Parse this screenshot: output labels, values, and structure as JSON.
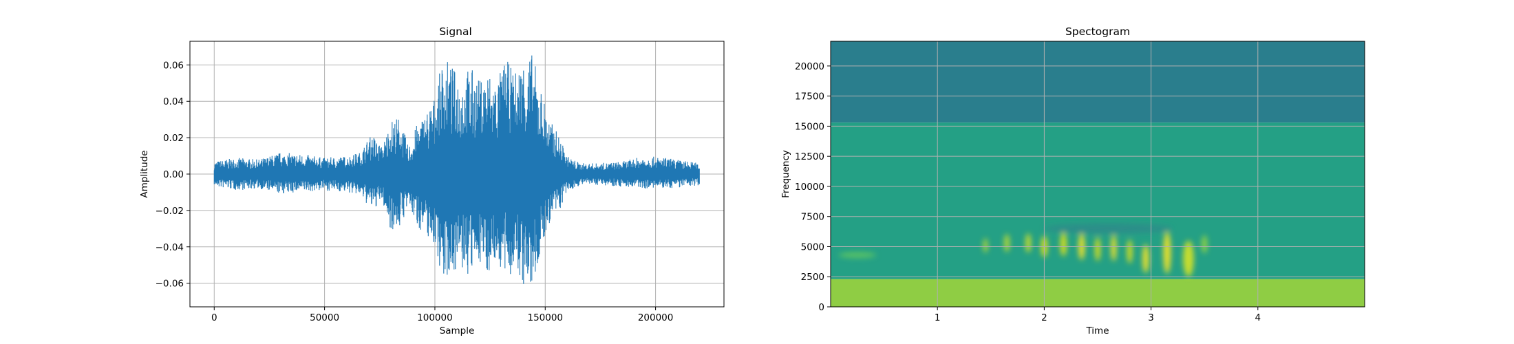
{
  "chart_data": [
    {
      "type": "line",
      "title": "Signal",
      "xlabel": "Sample",
      "ylabel": "Amplitude",
      "xlim": [
        -11000,
        231000
      ],
      "ylim": [
        -0.073,
        0.073
      ],
      "xticks": [
        0,
        50000,
        100000,
        150000,
        200000
      ],
      "xtick_labels": [
        "0",
        "50000",
        "100000",
        "150000",
        "200000"
      ],
      "yticks": [
        -0.06,
        -0.04,
        -0.02,
        0.0,
        0.02,
        0.04,
        0.06
      ],
      "ytick_labels": [
        "−0.06",
        "−0.04",
        "−0.02",
        "0.00",
        "0.02",
        "0.04",
        "0.06"
      ],
      "grid": true,
      "color": "#1f77b4",
      "series": [
        {
          "x": [
            0,
            10000,
            20000,
            30000,
            40000,
            50000,
            60000,
            66000,
            70000,
            72000,
            76000,
            80000,
            84000,
            88000,
            92000,
            96000,
            100000,
            104000,
            108000,
            112000,
            116000,
            120000,
            124000,
            128000,
            132000,
            136000,
            140000,
            144000,
            148000,
            152000,
            156000,
            160000,
            166000,
            175000,
            185000,
            195000,
            205000,
            215000,
            220000
          ],
          "max": [
            0.007,
            0.009,
            0.008,
            0.012,
            0.011,
            0.009,
            0.01,
            0.012,
            0.02,
            0.022,
            0.015,
            0.03,
            0.032,
            0.015,
            0.028,
            0.035,
            0.043,
            0.066,
            0.059,
            0.055,
            0.06,
            0.052,
            0.058,
            0.052,
            0.064,
            0.056,
            0.065,
            0.067,
            0.048,
            0.03,
            0.022,
            0.01,
            0.006,
            0.006,
            0.007,
            0.01,
            0.009,
            0.007,
            0.006
          ],
          "min": [
            -0.007,
            -0.009,
            -0.008,
            -0.011,
            -0.01,
            -0.009,
            -0.01,
            -0.012,
            -0.018,
            -0.02,
            -0.015,
            -0.031,
            -0.03,
            -0.018,
            -0.029,
            -0.034,
            -0.04,
            -0.06,
            -0.053,
            -0.055,
            -0.058,
            -0.048,
            -0.055,
            -0.048,
            -0.06,
            -0.053,
            -0.063,
            -0.066,
            -0.045,
            -0.027,
            -0.022,
            -0.01,
            -0.006,
            -0.006,
            -0.007,
            -0.008,
            -0.008,
            -0.007,
            -0.006
          ]
        }
      ]
    },
    {
      "type": "heatmap",
      "title": "Spectogram",
      "xlabel": "Time",
      "ylabel": "Frequency",
      "xlim": [
        0,
        5
      ],
      "ylim": [
        0,
        22050
      ],
      "xticks": [
        1,
        2,
        3,
        4
      ],
      "xtick_labels": [
        "1",
        "2",
        "3",
        "4"
      ],
      "yticks": [
        0,
        2500,
        5000,
        7500,
        10000,
        12500,
        15000,
        17500,
        20000
      ],
      "ytick_labels": [
        "0",
        "2500",
        "5000",
        "7500",
        "10000",
        "12500",
        "15000",
        "17500",
        "20000"
      ],
      "grid": true,
      "colormap": "viridis",
      "bands": [
        {
          "freq_min": 15300,
          "freq_max": 22050,
          "color": "#2a7e8d"
        },
        {
          "freq_min": 2300,
          "freq_max": 15300,
          "color": "#24a085"
        },
        {
          "freq_min": 0,
          "freq_max": 2300,
          "color": "#8fcd44"
        }
      ],
      "features": [
        {
          "t": 0.25,
          "freq": 4300,
          "width": 0.35,
          "height": 500,
          "color": "#5cc563"
        },
        {
          "t": 1.45,
          "freq": 5100,
          "width": 0.04,
          "height": 1200,
          "color": "#c5df2b"
        },
        {
          "t": 1.65,
          "freq": 5300,
          "width": 0.05,
          "height": 1500,
          "color": "#c5df2b"
        },
        {
          "t": 1.85,
          "freq": 5300,
          "width": 0.05,
          "height": 1600,
          "color": "#d9e421"
        },
        {
          "t": 2.0,
          "freq": 5000,
          "width": 0.06,
          "height": 1800,
          "color": "#e5e419"
        },
        {
          "t": 2.18,
          "freq": 5200,
          "width": 0.06,
          "height": 2000,
          "color": "#e5e419"
        },
        {
          "t": 2.35,
          "freq": 5000,
          "width": 0.06,
          "height": 2200,
          "color": "#fde725"
        },
        {
          "t": 2.5,
          "freq": 4800,
          "width": 0.05,
          "height": 2000,
          "color": "#e5e419"
        },
        {
          "t": 2.65,
          "freq": 4900,
          "width": 0.05,
          "height": 2200,
          "color": "#fde725"
        },
        {
          "t": 2.8,
          "freq": 4600,
          "width": 0.05,
          "height": 2000,
          "color": "#e5e419"
        },
        {
          "t": 2.95,
          "freq": 4000,
          "width": 0.06,
          "height": 2400,
          "color": "#fde725"
        },
        {
          "t": 3.15,
          "freq": 4500,
          "width": 0.07,
          "height": 3500,
          "color": "#fde725"
        },
        {
          "t": 3.35,
          "freq": 4000,
          "width": 0.1,
          "height": 3000,
          "color": "#d9e421"
        },
        {
          "t": 3.5,
          "freq": 5200,
          "width": 0.05,
          "height": 1500,
          "color": "#a0d93a"
        },
        {
          "t": 2.6,
          "freq": 6500,
          "width": 1.2,
          "height": 800,
          "color": "#2e8c8a"
        }
      ]
    }
  ]
}
